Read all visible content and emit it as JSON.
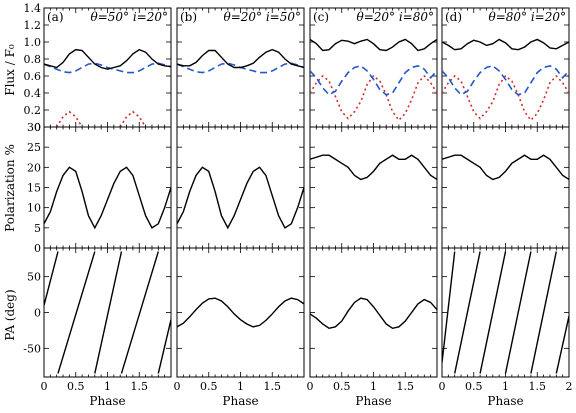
{
  "chart_data": {
    "type": "line",
    "layout": "3 rows x 4 columns, shared x-axis per column",
    "panels": [
      {
        "tag": "(a)",
        "params": "θ=50° i=20°"
      },
      {
        "tag": "(b)",
        "params": "θ=20° i=50°"
      },
      {
        "tag": "(c)",
        "params": "θ=20° i=80°"
      },
      {
        "tag": "(d)",
        "params": "θ=80° i=20°"
      }
    ],
    "xlabel": "Phase",
    "xlim": [
      0,
      2
    ],
    "x_ticks": [
      "0",
      "0.5",
      "1",
      "1.5",
      "2"
    ],
    "rows": [
      {
        "ylabel": "Flux / F₀",
        "ylim": [
          0,
          1.4
        ],
        "ticks": [
          "0",
          "0.2",
          "0.4",
          "0.6",
          "0.8",
          "1.0",
          "1.2",
          "1.4"
        ]
      },
      {
        "ylabel": "Polarization %",
        "ylim": [
          0,
          30
        ],
        "ticks": [
          "0",
          "5",
          "10",
          "15",
          "20",
          "25",
          "30"
        ]
      },
      {
        "ylabel": "PA (deg)",
        "ylim": [
          -90,
          90
        ],
        "ticks": [
          "-50",
          "0",
          "50"
        ]
      }
    ],
    "series_styles": [
      {
        "id": "total",
        "color": "#000000",
        "dash": "solid"
      },
      {
        "id": "blue",
        "color": "#2457c9",
        "dash": "dashed"
      },
      {
        "id": "red",
        "color": "#d42a2a",
        "dash": "dotted"
      }
    ],
    "x": [
      0,
      0.1,
      0.2,
      0.3,
      0.4,
      0.5,
      0.6,
      0.7,
      0.8,
      0.9,
      1.0,
      1.1,
      1.2,
      1.3,
      1.4,
      1.5,
      1.6,
      1.7,
      1.8,
      1.9,
      2.0
    ],
    "series": {
      "a": {
        "flux_total": [
          0.74,
          0.72,
          0.7,
          0.76,
          0.86,
          0.91,
          0.9,
          0.82,
          0.74,
          0.7,
          0.68,
          0.7,
          0.72,
          0.78,
          0.86,
          0.91,
          0.88,
          0.8,
          0.74,
          0.72,
          0.71
        ],
        "flux_blue": [
          0.74,
          0.71,
          0.68,
          0.65,
          0.64,
          0.66,
          0.7,
          0.74,
          0.75,
          0.73,
          0.7,
          0.68,
          0.66,
          0.64,
          0.64,
          0.66,
          0.7,
          0.74,
          0.75,
          0.73,
          0.71
        ],
        "flux_red": [
          null,
          null,
          0.0,
          0.12,
          0.18,
          0.12,
          0.0,
          null,
          null,
          null,
          null,
          null,
          0.0,
          0.12,
          0.18,
          0.12,
          0.0,
          null,
          null,
          null,
          null
        ],
        "polarization": [
          6,
          9,
          14,
          18,
          20,
          19,
          14,
          8,
          5,
          8,
          12,
          16,
          19,
          20,
          18,
          13,
          8,
          5,
          6,
          10,
          15
        ],
        "pa": [
          {
            "x": [
              0.0,
              0.22
            ],
            "y": [
              10,
              85
            ]
          },
          {
            "x": [
              0.22,
              0.8
            ],
            "y": [
              -85,
              85
            ]
          },
          {
            "x": [
              0.8,
              1.22
            ],
            "y": [
              -85,
              85
            ]
          },
          {
            "x": [
              1.22,
              1.8
            ],
            "y": [
              -85,
              85
            ]
          },
          {
            "x": [
              1.8,
              2.0
            ],
            "y": [
              -85,
              -10
            ]
          }
        ]
      },
      "b": {
        "flux_total": [
          0.74,
          0.72,
          0.72,
          0.76,
          0.84,
          0.9,
          0.9,
          0.82,
          0.74,
          0.7,
          0.7,
          0.72,
          0.75,
          0.82,
          0.88,
          0.91,
          0.88,
          0.8,
          0.74,
          0.72,
          0.7
        ],
        "flux_blue": [
          0.74,
          0.71,
          0.68,
          0.65,
          0.64,
          0.66,
          0.7,
          0.74,
          0.75,
          0.73,
          0.7,
          0.68,
          0.66,
          0.64,
          0.64,
          0.66,
          0.7,
          0.74,
          0.75,
          0.73,
          0.7
        ],
        "polarization": [
          6,
          9,
          14,
          18,
          20,
          19,
          14,
          8,
          5,
          8,
          12,
          16,
          19,
          20,
          18,
          13,
          8,
          5,
          6,
          10,
          15
        ],
        "pa": [
          {
            "x": [
              0,
              0.1,
              0.2,
              0.3,
              0.4,
              0.5,
              0.6,
              0.7,
              0.8,
              0.9,
              1.0,
              1.1,
              1.2,
              1.3,
              1.4,
              1.5,
              1.6,
              1.7,
              1.8,
              1.9,
              2.0
            ],
            "y": [
              -20,
              -15,
              -6,
              4,
              13,
              19,
              20,
              16,
              8,
              -2,
              -10,
              -16,
              -20,
              -18,
              -11,
              -2,
              8,
              16,
              20,
              18,
              12
            ]
          }
        ]
      },
      "c": {
        "flux_total": [
          1.03,
          0.98,
          0.9,
          0.91,
          0.98,
          1.02,
          1.01,
          0.98,
          1.01,
          1.03,
          0.98,
          0.91,
          0.9,
          0.94,
          1.0,
          1.03,
          0.98,
          0.9,
          0.92,
          0.98,
          1.03
        ],
        "flux_blue": [
          0.66,
          0.58,
          0.46,
          0.38,
          0.42,
          0.54,
          0.64,
          0.7,
          0.72,
          0.66,
          0.56,
          0.44,
          0.38,
          0.4,
          0.52,
          0.64,
          0.7,
          0.72,
          0.68,
          0.58,
          0.66
        ],
        "flux_red": [
          0.4,
          0.52,
          0.6,
          0.54,
          0.36,
          0.18,
          0.1,
          0.18,
          0.3,
          0.5,
          0.6,
          0.54,
          0.38,
          0.18,
          0.08,
          0.16,
          0.32,
          0.52,
          0.6,
          0.52,
          0.4
        ],
        "polarization": [
          22,
          22.5,
          23,
          23,
          22,
          21,
          20,
          18,
          17,
          17.5,
          19,
          21,
          22,
          23,
          22,
          22,
          23,
          22,
          20,
          18,
          17
        ],
        "pa": [
          {
            "x": [
              0,
              0.1,
              0.2,
              0.3,
              0.4,
              0.5,
              0.6,
              0.7,
              0.8,
              0.9,
              1.0,
              1.1,
              1.2,
              1.3,
              1.4,
              1.5,
              1.6,
              1.7,
              1.8,
              1.9,
              2.0
            ],
            "y": [
              -2,
              -8,
              -16,
              -22,
              -20,
              -12,
              2,
              14,
              20,
              18,
              8,
              -4,
              -16,
              -22,
              -20,
              -12,
              0,
              12,
              18,
              14,
              4
            ]
          }
        ]
      },
      "d": {
        "flux_total": [
          1.0,
          0.96,
          0.91,
          0.92,
          0.98,
          1.02,
          1.0,
          0.96,
          0.98,
          1.03,
          0.99,
          0.92,
          0.91,
          0.94,
          1.0,
          1.03,
          0.99,
          0.93,
          0.92,
          0.96,
          1.0
        ],
        "flux_blue": [
          0.66,
          0.58,
          0.46,
          0.38,
          0.42,
          0.54,
          0.64,
          0.7,
          0.72,
          0.66,
          0.56,
          0.44,
          0.38,
          0.4,
          0.52,
          0.64,
          0.7,
          0.72,
          0.68,
          0.58,
          0.66
        ],
        "flux_red": [
          0.4,
          0.52,
          0.6,
          0.54,
          0.36,
          0.18,
          0.1,
          0.18,
          0.3,
          0.5,
          0.6,
          0.54,
          0.38,
          0.18,
          0.08,
          0.16,
          0.32,
          0.52,
          0.6,
          0.52,
          0.4
        ],
        "polarization": [
          22,
          22.5,
          23,
          23,
          22,
          21,
          20,
          18,
          17,
          17.5,
          19,
          21,
          22,
          23,
          22,
          22,
          23,
          22,
          20,
          18,
          17
        ],
        "pa": [
          {
            "x": [
              0.0,
              0.2
            ],
            "y": [
              -70,
              85
            ]
          },
          {
            "x": [
              0.2,
              0.6
            ],
            "y": [
              -85,
              85
            ]
          },
          {
            "x": [
              0.6,
              1.0
            ],
            "y": [
              -85,
              85
            ]
          },
          {
            "x": [
              1.0,
              1.4
            ],
            "y": [
              -85,
              85
            ]
          },
          {
            "x": [
              1.4,
              1.8
            ],
            "y": [
              -85,
              85
            ]
          },
          {
            "x": [
              1.8,
              2.0
            ],
            "y": [
              -85,
              -5
            ]
          }
        ]
      }
    }
  }
}
